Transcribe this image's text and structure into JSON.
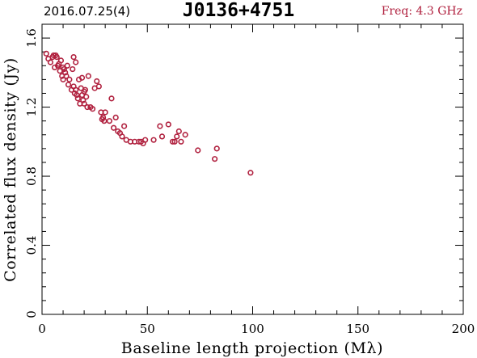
{
  "header": {
    "date": "2016.07.25(4)",
    "source": "J0136+4751",
    "freq": "Freq: 4.3 GHz"
  },
  "colors": {
    "points": "#b0203e",
    "axes": "#000000"
  },
  "chart_data": {
    "type": "scatter",
    "title": "J0136+4751",
    "xlabel": "Baseline length projection (Mλ)",
    "ylabel": "Correlated flux density (Jy)",
    "xlim": [
      0,
      200
    ],
    "ylim": [
      0,
      1.68
    ],
    "xticks": [
      0,
      50,
      100,
      150,
      200
    ],
    "xtick_labels": [
      "0",
      "50",
      "100",
      "150",
      "200"
    ],
    "yticks": [
      0,
      0.4,
      0.8,
      1.2,
      1.6
    ],
    "ytick_labels": [
      "0",
      "0.4",
      "0.8",
      "1.2",
      "1.6"
    ],
    "grid": false,
    "series": [
      {
        "marker": "open-circle",
        "x": [
          2,
          3,
          4,
          5,
          5.5,
          6,
          6.5,
          7,
          7.5,
          8,
          8.5,
          9,
          9.5,
          10,
          10,
          10.5,
          11,
          11.5,
          12,
          12.5,
          13,
          14,
          14.5,
          15,
          15,
          15.5,
          16,
          16,
          16.5,
          17,
          17.5,
          18,
          18.5,
          19,
          19,
          19.5,
          20,
          20,
          20.5,
          21,
          21.5,
          22,
          23,
          24,
          25,
          26,
          27,
          28,
          28.5,
          29,
          29.5,
          30,
          32,
          33,
          34,
          35,
          36,
          37,
          38,
          39,
          40,
          42,
          44,
          46,
          47,
          48,
          49,
          53,
          56,
          57,
          60,
          62,
          63,
          64,
          65,
          66,
          68,
          74,
          82,
          83,
          99
        ],
        "y": [
          1.51,
          1.48,
          1.46,
          1.49,
          1.5,
          1.43,
          1.5,
          1.49,
          1.44,
          1.45,
          1.41,
          1.47,
          1.38,
          1.36,
          1.43,
          1.42,
          1.4,
          1.38,
          1.44,
          1.33,
          1.36,
          1.3,
          1.42,
          1.49,
          1.32,
          1.28,
          1.46,
          1.3,
          1.27,
          1.25,
          1.36,
          1.22,
          1.31,
          1.27,
          1.37,
          1.24,
          1.29,
          1.22,
          1.3,
          1.26,
          1.2,
          1.38,
          1.2,
          1.19,
          1.31,
          1.35,
          1.32,
          1.17,
          1.13,
          1.14,
          1.12,
          1.17,
          1.12,
          1.25,
          1.08,
          1.14,
          1.06,
          1.05,
          1.03,
          1.09,
          1.01,
          1.0,
          1.0,
          1.0,
          1.0,
          0.99,
          1.01,
          1.01,
          1.09,
          1.03,
          1.1,
          1.0,
          1.0,
          1.03,
          1.06,
          1.0,
          1.04,
          0.95,
          0.9,
          0.96,
          0.82
        ]
      }
    ]
  }
}
